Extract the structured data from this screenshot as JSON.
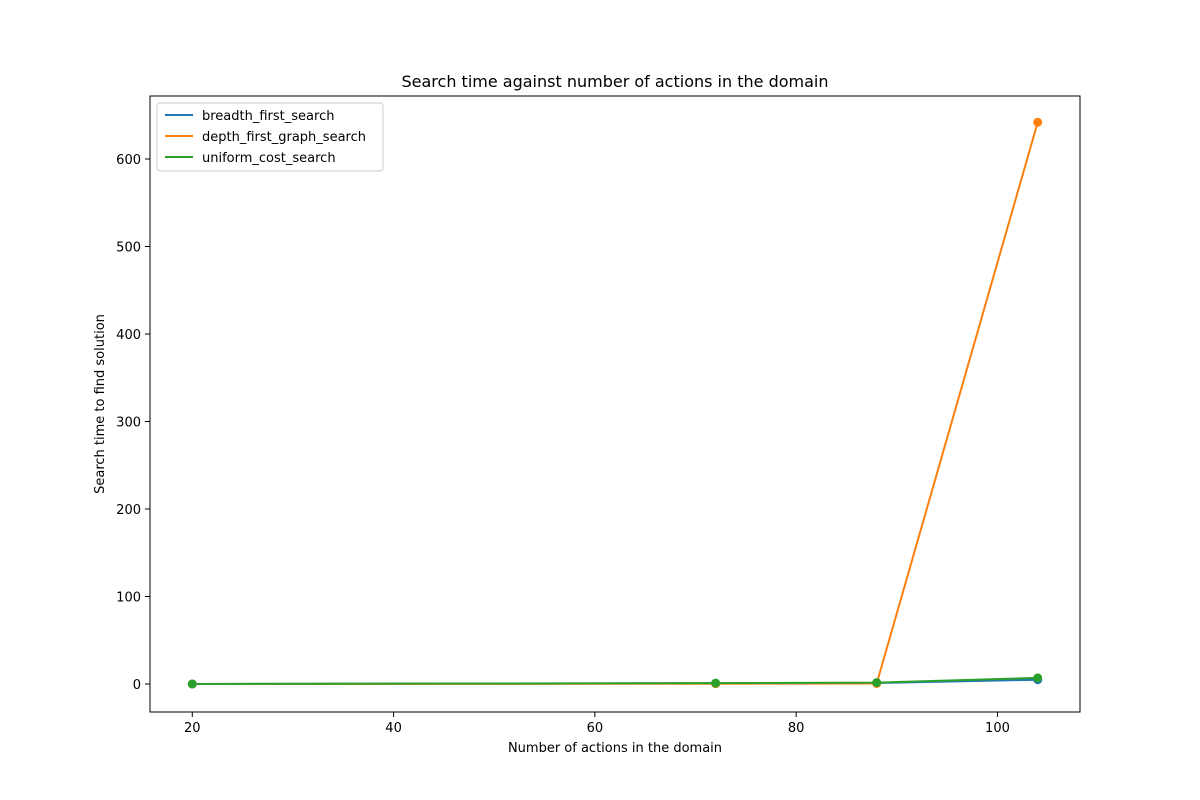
{
  "chart_data": {
    "type": "line",
    "title": "Search time against number of actions in the domain",
    "xlabel": "Number of actions in the domain",
    "ylabel": "Search time to find solution",
    "xlim": [
      15.8,
      108.2
    ],
    "ylim": [
      -32,
      672
    ],
    "xticks": [
      20,
      40,
      60,
      80,
      100
    ],
    "yticks": [
      0,
      100,
      200,
      300,
      400,
      500,
      600
    ],
    "grid": false,
    "legend_position": "top-left",
    "series": [
      {
        "name": "breadth_first_search",
        "color": "#1f77b4",
        "x": [
          20,
          72,
          88,
          104
        ],
        "y": [
          0.01,
          0.8,
          1.2,
          4.9
        ]
      },
      {
        "name": "depth_first_graph_search",
        "color": "#ff7f0e",
        "x": [
          20,
          72,
          88,
          104
        ],
        "y": [
          0.01,
          0.3,
          0.6,
          642
        ]
      },
      {
        "name": "uniform_cost_search",
        "color": "#2ca02c",
        "x": [
          20,
          72,
          88,
          104
        ],
        "y": [
          0.02,
          1.0,
          1.6,
          7.0
        ]
      }
    ]
  }
}
